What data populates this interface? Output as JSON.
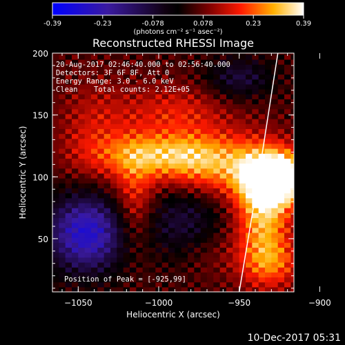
{
  "chart_data": {
    "type": "heatmap",
    "title": "Reconstructed RHESSI Image",
    "xlabel": "Heliocentric X (arcsec)",
    "ylabel": "Heliocentric Y (arcsec)",
    "xlim": [
      -1066,
      -916
    ],
    "ylim": [
      7,
      200
    ],
    "x_ticks": [
      -1050,
      -1000,
      -950,
      -900
    ],
    "y_ticks": [
      50,
      100,
      150,
      200
    ],
    "colorbar": {
      "ticks": [
        "-0.39",
        "-0.23",
        "-0.078",
        "0.078",
        "0.23",
        "0.39"
      ],
      "unit_label": "(photons cm⁻² s⁻¹ asec⁻²)",
      "range": [
        -0.39,
        0.39
      ]
    },
    "annotations": {
      "time_range": "20-Aug-2017 02:46:40.000 to 02:56:40.000",
      "detectors": "Detectors: 3F 6F 8F, Att 0",
      "energy": "Energy Range: 3.0 - 6.0 keV",
      "method": "Clean",
      "total_counts": "Total counts: 2.12E+05",
      "peak": "Position of Peak = [-925,99]"
    },
    "peak": {
      "x": -925,
      "y": 99
    },
    "limb": [
      [
        -950,
        7
      ],
      [
        -938,
        100
      ],
      [
        -926,
        200
      ]
    ],
    "colors": {
      "low": "#0000ff",
      "zero": "#000000",
      "mid": "#ff0000",
      "high": "#ffffff"
    }
  },
  "footer": {
    "timestamp": "10-Dec-2017 05:31"
  }
}
